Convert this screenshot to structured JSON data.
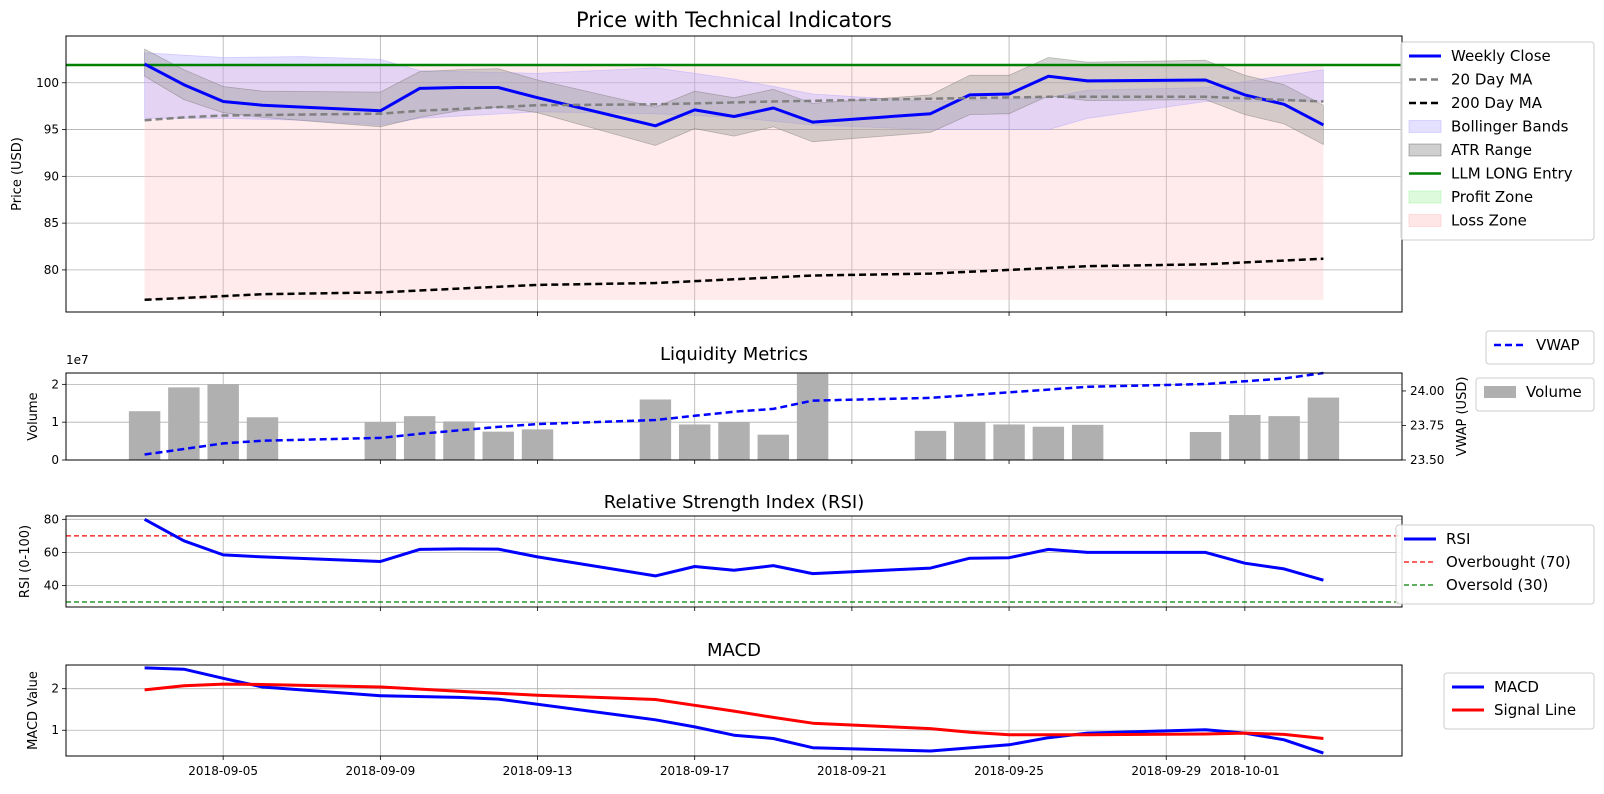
{
  "chart_data": [
    {
      "id": "price",
      "type": "line",
      "title": "Price with Technical Indicators",
      "ylabel": "Price (USD)",
      "ylim": [
        75.5,
        105
      ],
      "yticks": [
        80,
        85,
        90,
        95,
        100
      ],
      "legend": "top-right",
      "series": [
        {
          "name": "Weekly Close",
          "color": "#0000ff",
          "style": "solid",
          "x": [
            "2018-09-03",
            "2018-09-04",
            "2018-09-05",
            "2018-09-06",
            "2018-09-09",
            "2018-09-10",
            "2018-09-11",
            "2018-09-12",
            "2018-09-13",
            "2018-09-16",
            "2018-09-17",
            "2018-09-18",
            "2018-09-19",
            "2018-09-20",
            "2018-09-23",
            "2018-09-24",
            "2018-09-25",
            "2018-09-26",
            "2018-09-27",
            "2018-09-30",
            "2018-10-01",
            "2018-10-02",
            "2018-10-03"
          ],
          "values": [
            102.0,
            99.8,
            98.0,
            97.6,
            97.0,
            99.4,
            99.5,
            99.5,
            98.4,
            95.4,
            97.1,
            96.4,
            97.3,
            95.8,
            96.7,
            98.7,
            98.8,
            100.7,
            100.2,
            100.3,
            98.7,
            97.7,
            95.5
          ]
        },
        {
          "name": "20 Day MA",
          "color": "#808080",
          "style": "dashed",
          "x": [
            "2018-09-03",
            "2018-09-04",
            "2018-09-05",
            "2018-09-09",
            "2018-09-10",
            "2018-09-12",
            "2018-09-13",
            "2018-09-16",
            "2018-09-19",
            "2018-09-23",
            "2018-09-26",
            "2018-09-30",
            "2018-10-03"
          ],
          "values": [
            96.0,
            96.3,
            96.5,
            96.7,
            97.0,
            97.4,
            97.6,
            97.7,
            98.0,
            98.3,
            98.5,
            98.5,
            98.0
          ]
        },
        {
          "name": "200 Day MA",
          "color": "#000000",
          "style": "dashed",
          "x": [
            "2018-09-03",
            "2018-09-05",
            "2018-09-06",
            "2018-09-09",
            "2018-09-11",
            "2018-09-13",
            "2018-09-16",
            "2018-09-18",
            "2018-09-20",
            "2018-09-23",
            "2018-09-25",
            "2018-09-27",
            "2018-09-30",
            "2018-10-01",
            "2018-10-03"
          ],
          "values": [
            76.8,
            77.2,
            77.4,
            77.6,
            78.0,
            78.4,
            78.6,
            79.0,
            79.4,
            79.6,
            80.0,
            80.4,
            80.6,
            80.8,
            81.2
          ]
        }
      ],
      "bands": [
        {
          "name": "Bollinger Bands",
          "color": "#b2a6ff",
          "x": [
            "2018-09-03",
            "2018-09-05",
            "2018-09-07",
            "2018-09-09",
            "2018-09-10",
            "2018-09-13",
            "2018-09-16",
            "2018-09-18",
            "2018-09-20",
            "2018-09-23",
            "2018-09-26",
            "2018-09-27",
            "2018-09-30",
            "2018-10-03"
          ],
          "lower": [
            96.2,
            96.2,
            96.0,
            95.5,
            96.2,
            96.9,
            96.7,
            96.3,
            95.5,
            95.0,
            95.0,
            96.2,
            98.0,
            98.0
          ],
          "upper": [
            103.2,
            102.7,
            102.8,
            102.5,
            101.3,
            101.0,
            101.6,
            100.4,
            98.8,
            98.0,
            98.4,
            99.2,
            99.5,
            101.4
          ]
        },
        {
          "name": "ATR Range",
          "color": "#a0a0a0",
          "x": [
            "2018-09-03",
            "2018-09-04",
            "2018-09-05",
            "2018-09-06",
            "2018-09-09",
            "2018-09-10",
            "2018-09-11",
            "2018-09-12",
            "2018-09-13",
            "2018-09-16",
            "2018-09-17",
            "2018-09-18",
            "2018-09-19",
            "2018-09-20",
            "2018-09-23",
            "2018-09-24",
            "2018-09-25",
            "2018-09-26",
            "2018-09-27",
            "2018-09-30",
            "2018-10-01",
            "2018-10-02",
            "2018-10-03"
          ],
          "lower": [
            100.7,
            98.2,
            96.8,
            96.3,
            95.3,
            96.3,
            97.0,
            97.4,
            96.8,
            93.3,
            95.1,
            94.3,
            95.3,
            93.7,
            94.7,
            96.6,
            96.7,
            98.6,
            98.1,
            98.2,
            96.6,
            95.6,
            93.4
          ],
          "upper": [
            103.6,
            101.4,
            99.6,
            99.1,
            99.0,
            101.2,
            101.4,
            101.5,
            100.3,
            97.4,
            99.1,
            98.4,
            99.3,
            97.8,
            98.7,
            100.8,
            100.8,
            102.7,
            102.2,
            102.4,
            100.8,
            99.8,
            97.6
          ]
        }
      ],
      "hlines": [
        {
          "name": "LLM LONG Entry",
          "value": 101.9,
          "color": "#008000"
        }
      ],
      "zones": [
        {
          "name": "Profit Zone",
          "color": "#90ee90",
          "from": 101.9,
          "to": 101.9
        },
        {
          "name": "Loss Zone",
          "color": "#ffb6b6",
          "from": 76.8,
          "to": 101.9
        }
      ]
    },
    {
      "id": "liquidity",
      "type": "bar",
      "title": "Liquidity Metrics",
      "ylabel": "Volume",
      "ylabel2": "VWAP (USD)",
      "scale_note": "1e7",
      "ylim": [
        0,
        23000000
      ],
      "yticks": [
        0,
        10000000,
        20000000
      ],
      "ytick_labels": [
        "0",
        "1",
        "2"
      ],
      "ylim2": [
        23.5,
        24.13
      ],
      "yticks2": [
        23.5,
        23.75,
        24.0
      ],
      "ytick_labels2": [
        "23.50",
        "23.75",
        "24.00"
      ],
      "bars": {
        "name": "Volume",
        "color": "#b0b0b0",
        "x": [
          "2018-09-03",
          "2018-09-04",
          "2018-09-05",
          "2018-09-06",
          "2018-09-09",
          "2018-09-10",
          "2018-09-11",
          "2018-09-12",
          "2018-09-13",
          "2018-09-16",
          "2018-09-17",
          "2018-09-18",
          "2018-09-19",
          "2018-09-20",
          "2018-09-23",
          "2018-09-24",
          "2018-09-25",
          "2018-09-26",
          "2018-09-27",
          "2018-09-30",
          "2018-10-01",
          "2018-10-02",
          "2018-10-03"
        ],
        "values": [
          12900000,
          19200000,
          20000000,
          11300000,
          10000000,
          11600000,
          10200000,
          7500000,
          8100000,
          16000000,
          9400000,
          10000000,
          6700000,
          22800000,
          7700000,
          10000000,
          9400000,
          8800000,
          9300000,
          7400000,
          11900000,
          11600000,
          16500000
        ]
      },
      "line": {
        "name": "VWAP",
        "color": "#0000ff",
        "style": "dashed",
        "x": [
          "2018-09-03",
          "2018-09-04",
          "2018-09-05",
          "2018-09-06",
          "2018-09-09",
          "2018-09-10",
          "2018-09-12",
          "2018-09-13",
          "2018-09-16",
          "2018-09-17",
          "2018-09-18",
          "2018-09-19",
          "2018-09-20",
          "2018-09-23",
          "2018-09-24",
          "2018-09-26",
          "2018-09-27",
          "2018-09-30",
          "2018-10-01",
          "2018-10-02",
          "2018-10-03"
        ],
        "values": [
          23.54,
          23.58,
          23.62,
          23.64,
          23.66,
          23.69,
          23.74,
          23.76,
          23.79,
          23.82,
          23.85,
          23.87,
          23.93,
          23.95,
          23.97,
          24.01,
          24.03,
          24.05,
          24.07,
          24.09,
          24.13
        ]
      },
      "legend": "right"
    },
    {
      "id": "rsi",
      "type": "line",
      "title": "Relative Strength Index (RSI)",
      "ylabel": "RSI (0-100)",
      "ylim": [
        27,
        82
      ],
      "yticks": [
        40,
        60,
        80
      ],
      "series": [
        {
          "name": "RSI",
          "color": "#0000ff",
          "style": "solid",
          "x": [
            "2018-09-03",
            "2018-09-04",
            "2018-09-05",
            "2018-09-06",
            "2018-09-09",
            "2018-09-10",
            "2018-09-11",
            "2018-09-12",
            "2018-09-13",
            "2018-09-16",
            "2018-09-17",
            "2018-09-18",
            "2018-09-19",
            "2018-09-20",
            "2018-09-23",
            "2018-09-24",
            "2018-09-25",
            "2018-09-26",
            "2018-09-27",
            "2018-09-30",
            "2018-10-01",
            "2018-10-02",
            "2018-10-03"
          ],
          "values": [
            80.0,
            67.0,
            58.5,
            57.3,
            54.5,
            61.8,
            62.1,
            62.0,
            57.3,
            45.8,
            51.5,
            49.2,
            52.0,
            47.2,
            50.5,
            56.5,
            56.8,
            61.8,
            60.0,
            60.0,
            53.5,
            50.0,
            43.2
          ]
        }
      ],
      "hlines": [
        {
          "name": "Overbought (70)",
          "value": 70,
          "color": "#ff0000"
        },
        {
          "name": "Oversold (30)",
          "value": 30,
          "color": "#008000"
        }
      ],
      "legend": "top-right"
    },
    {
      "id": "macd",
      "type": "line",
      "title": "MACD",
      "ylabel": "MACD Value",
      "ylim": [
        0.38,
        2.57
      ],
      "yticks": [
        1,
        2
      ],
      "series": [
        {
          "name": "MACD",
          "color": "#0000ff",
          "style": "solid",
          "x": [
            "2018-09-03",
            "2018-09-04",
            "2018-09-05",
            "2018-09-06",
            "2018-09-09",
            "2018-09-11",
            "2018-09-12",
            "2018-09-16",
            "2018-09-17",
            "2018-09-18",
            "2018-09-19",
            "2018-09-20",
            "2018-09-23",
            "2018-09-25",
            "2018-09-26",
            "2018-09-27",
            "2018-09-30",
            "2018-10-01",
            "2018-10-02",
            "2018-10-03"
          ],
          "values": [
            2.5,
            2.47,
            2.25,
            2.04,
            1.83,
            1.79,
            1.75,
            1.25,
            1.08,
            0.88,
            0.8,
            0.58,
            0.5,
            0.65,
            0.82,
            0.93,
            1.01,
            0.93,
            0.77,
            0.45
          ]
        },
        {
          "name": "Signal Line",
          "color": "#ff0000",
          "style": "solid",
          "x": [
            "2018-09-03",
            "2018-09-04",
            "2018-09-05",
            "2018-09-06",
            "2018-09-09",
            "2018-09-11",
            "2018-09-13",
            "2018-09-16",
            "2018-09-17",
            "2018-09-18",
            "2018-09-19",
            "2018-09-20",
            "2018-09-23",
            "2018-09-24",
            "2018-09-25",
            "2018-09-27",
            "2018-09-30",
            "2018-10-01",
            "2018-10-02",
            "2018-10-03"
          ],
          "values": [
            1.97,
            2.07,
            2.11,
            2.1,
            2.04,
            1.94,
            1.84,
            1.74,
            1.6,
            1.46,
            1.31,
            1.17,
            1.04,
            0.95,
            0.89,
            0.89,
            0.91,
            0.93,
            0.9,
            0.8
          ]
        }
      ],
      "legend": "right"
    }
  ],
  "x_axis": {
    "start": "2018-09-01",
    "end": "2018-10-05",
    "ticks": [
      "2018-09-05",
      "2018-09-09",
      "2018-09-13",
      "2018-09-17",
      "2018-09-21",
      "2018-09-25",
      "2018-09-29",
      "2018-10-01"
    ]
  }
}
